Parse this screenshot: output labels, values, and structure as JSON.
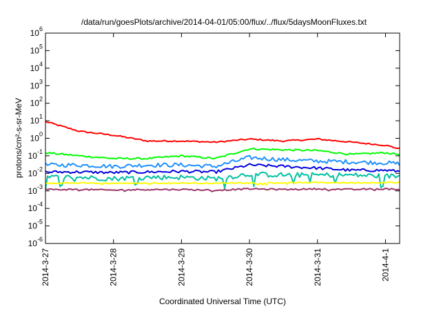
{
  "chart_data": {
    "type": "line",
    "title": "/data/run/goesPlots/archive/2014-04-01/05:00/flux/../flux/5daysMoonFluxes.txt",
    "xlabel": "Coordinated Universal Time (UTC)",
    "ylabel": "protons/cm²-s-sr-MeV",
    "yscale": "log",
    "ylim": [
      1e-06,
      1000000.0
    ],
    "xlim": [
      "2014-3-27",
      "2014-4-1 05:00"
    ],
    "grid": false,
    "legend": "none",
    "x_ticks": [
      {
        "label": "2014-3-27",
        "value": "2014-3-27"
      },
      {
        "label": "2014-3-28",
        "value": "2014-3-28"
      },
      {
        "label": "2014-3-29",
        "value": "2014-3-29"
      },
      {
        "label": "2014-3-30",
        "value": "2014-3-30"
      },
      {
        "label": "2014-3-31",
        "value": "2014-3-31"
      },
      {
        "label": "2014-4-1",
        "value": "2014-4-1"
      }
    ],
    "y_ticks": [
      {
        "base": "10",
        "exp": "-6"
      },
      {
        "base": "10",
        "exp": "-5"
      },
      {
        "base": "10",
        "exp": "-4"
      },
      {
        "base": "10",
        "exp": "-3"
      },
      {
        "base": "10",
        "exp": "-2"
      },
      {
        "base": "10",
        "exp": "-1"
      },
      {
        "base": "10",
        "exp": "0"
      },
      {
        "base": "10",
        "exp": "1"
      },
      {
        "base": "10",
        "exp": "2"
      },
      {
        "base": "10",
        "exp": "3"
      },
      {
        "base": "10",
        "exp": "4"
      },
      {
        "base": "10",
        "exp": "5"
      },
      {
        "base": "10",
        "exp": "6"
      }
    ],
    "series": [
      {
        "color": "#ff0000",
        "noise": 0.04,
        "spikes": 0,
        "x": [
          "2014-3-27",
          "2014-3-27 12:00",
          "2014-3-28",
          "2014-3-28 12:00",
          "2014-3-29",
          "2014-3-29 12:00",
          "2014-3-30",
          "2014-3-30 12:00",
          "2014-3-31",
          "2014-3-31 12:00",
          "2014-4-1",
          "2014-4-1 05:00"
        ],
        "y": [
          9,
          2.5,
          1.5,
          0.7,
          0.7,
          0.6,
          0.9,
          0.7,
          0.9,
          0.6,
          0.4,
          0.25
        ]
      },
      {
        "color": "#00ff00",
        "noise": 0.05,
        "spikes": 0,
        "x": [
          "2014-3-27",
          "2014-3-27 12:00",
          "2014-3-28",
          "2014-3-28 12:00",
          "2014-3-29",
          "2014-3-29 12:00",
          "2014-3-30",
          "2014-3-30 12:00",
          "2014-3-31",
          "2014-3-31 12:00",
          "2014-4-1",
          "2014-4-1 05:00"
        ],
        "y": [
          0.15,
          0.1,
          0.07,
          0.07,
          0.1,
          0.07,
          0.25,
          0.22,
          0.2,
          0.12,
          0.15,
          0.12
        ]
      },
      {
        "color": "#1e90ff",
        "noise": 0.12,
        "spikes": 0,
        "x": [
          "2014-3-27",
          "2014-3-27 12:00",
          "2014-3-28",
          "2014-3-28 12:00",
          "2014-3-29",
          "2014-3-29 12:00",
          "2014-3-30",
          "2014-3-30 12:00",
          "2014-3-31",
          "2014-3-31 12:00",
          "2014-4-1",
          "2014-4-1 05:00"
        ],
        "y": [
          0.03,
          0.03,
          0.025,
          0.03,
          0.03,
          0.025,
          0.08,
          0.06,
          0.05,
          0.045,
          0.04,
          0.035
        ]
      },
      {
        "color": "#0000dd",
        "noise": 0.08,
        "spikes": 0,
        "x": [
          "2014-3-27",
          "2014-3-27 12:00",
          "2014-3-28",
          "2014-3-28 12:00",
          "2014-3-29",
          "2014-3-29 12:00",
          "2014-3-30",
          "2014-3-30 12:00",
          "2014-3-31",
          "2014-3-31 12:00",
          "2014-4-1",
          "2014-4-1 05:00"
        ],
        "y": [
          0.012,
          0.012,
          0.011,
          0.012,
          0.013,
          0.012,
          0.03,
          0.025,
          0.02,
          0.015,
          0.015,
          0.013
        ]
      },
      {
        "color": "#00c0a0",
        "noise": 0.14,
        "spikes": 0.1,
        "x": [
          "2014-3-27",
          "2014-3-27 12:00",
          "2014-3-28",
          "2014-3-28 12:00",
          "2014-3-29",
          "2014-3-29 12:00",
          "2014-3-30",
          "2014-3-30 12:00",
          "2014-3-31",
          "2014-3-31 12:00",
          "2014-4-1",
          "2014-4-1 05:00"
        ],
        "y": [
          0.006,
          0.006,
          0.005,
          0.006,
          0.006,
          0.005,
          0.009,
          0.008,
          0.008,
          0.008,
          0.007,
          0.007
        ]
      },
      {
        "color": "#ffff00",
        "noise": 0.03,
        "spikes": 0.02,
        "x": [
          "2014-3-27",
          "2014-3-27 12:00",
          "2014-3-28",
          "2014-3-28 12:00",
          "2014-3-29",
          "2014-3-29 12:00",
          "2014-3-30",
          "2014-3-30 12:00",
          "2014-3-31",
          "2014-3-31 12:00",
          "2014-4-1",
          "2014-4-1 05:00"
        ],
        "y": [
          0.0028,
          0.0028,
          0.0027,
          0.0028,
          0.0028,
          0.0027,
          0.003,
          0.0029,
          0.003,
          0.0029,
          0.003,
          0.003
        ]
      },
      {
        "color": "#993366",
        "noise": 0.04,
        "spikes": 0.015,
        "x": [
          "2014-3-27",
          "2014-3-27 12:00",
          "2014-3-28",
          "2014-3-28 12:00",
          "2014-3-29",
          "2014-3-29 12:00",
          "2014-3-30",
          "2014-3-30 12:00",
          "2014-3-31",
          "2014-3-31 12:00",
          "2014-4-1",
          "2014-4-1 05:00"
        ],
        "y": [
          0.0012,
          0.0012,
          0.0011,
          0.0012,
          0.0012,
          0.0011,
          0.0013,
          0.0012,
          0.0013,
          0.0012,
          0.0013,
          0.0012
        ]
      }
    ]
  }
}
